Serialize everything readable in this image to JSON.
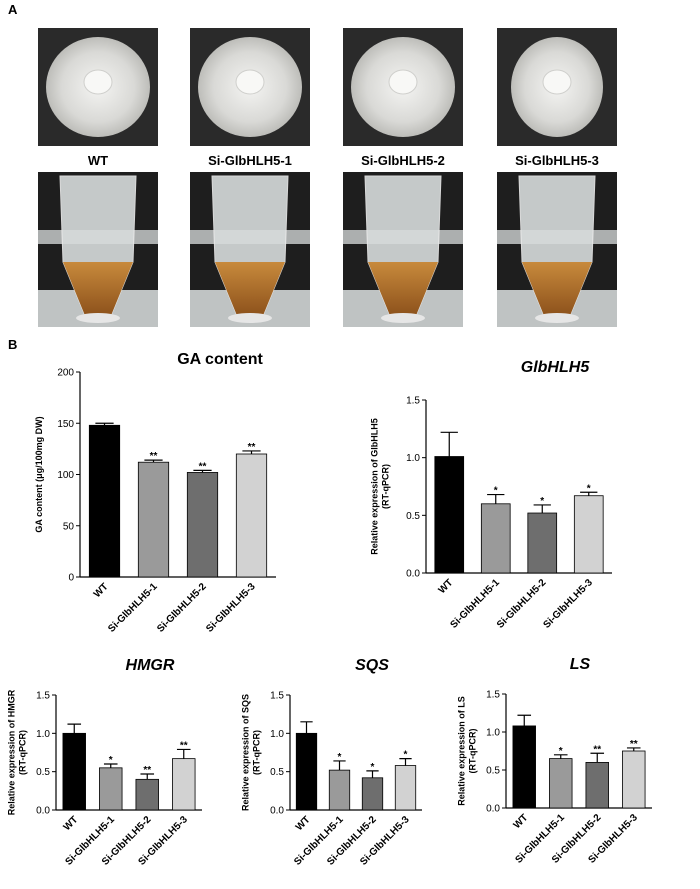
{
  "panel_labels": [
    "A",
    "B"
  ],
  "photo_labels": [
    "WT",
    "Si-GlbHLH5-1",
    "Si-GlbHLH5-2",
    "Si-GlbHLH5-3"
  ],
  "chart_data": [
    {
      "type": "bar",
      "title": "GA content",
      "ylabel": [
        "GA content (μg/100mg DW)"
      ],
      "categories": [
        "WT",
        "Si-GlbHLH5-1",
        "Si-GlbHLH5-2",
        "Si-GlbHLH5-3"
      ],
      "values": [
        148,
        112,
        102,
        120
      ],
      "errors": [
        2,
        2,
        2,
        3
      ],
      "significance": [
        null,
        "**",
        "**",
        "**"
      ],
      "colors": [
        "#000000",
        "#9a9a9a",
        "#6e6e6e",
        "#d2d2d2"
      ],
      "ylim": [
        0,
        200
      ],
      "yticks": [
        0,
        50,
        100,
        150,
        200
      ]
    },
    {
      "type": "bar",
      "title": "GlbHLH5",
      "ylabel": [
        "Relative expression of GlbHLH5",
        "(RT-qPCR)"
      ],
      "categories": [
        "WT",
        "Si-GlbHLH5-1",
        "Si-GlbHLH5-2",
        "Si-GlbHLH5-3"
      ],
      "values": [
        1.01,
        0.6,
        0.52,
        0.67
      ],
      "errors": [
        0.21,
        0.08,
        0.07,
        0.03
      ],
      "significance": [
        null,
        "*",
        "*",
        "*"
      ],
      "colors": [
        "#000000",
        "#9a9a9a",
        "#6e6e6e",
        "#d2d2d2"
      ],
      "ylim": [
        0,
        1.5
      ],
      "yticks": [
        {
          "value": 0,
          "label": "0.0"
        },
        0.5,
        {
          "value": 1,
          "label": "1.0"
        },
        1.5
      ]
    },
    {
      "type": "bar",
      "title": "HMGR",
      "ylabel": [
        "Relative expression of HMGR",
        "(RT-qPCR)"
      ],
      "categories": [
        "WT",
        "Si-GlbHLH5-1",
        "Si-GlbHLH5-2",
        "Si-GlbHLH5-3"
      ],
      "values": [
        1.0,
        0.55,
        0.4,
        0.67
      ],
      "errors": [
        0.12,
        0.05,
        0.07,
        0.12
      ],
      "significance": [
        null,
        "*",
        "**",
        "**"
      ],
      "colors": [
        "#000000",
        "#9a9a9a",
        "#6e6e6e",
        "#d2d2d2"
      ],
      "ylim": [
        0,
        1.5
      ],
      "yticks": [
        {
          "value": 0,
          "label": "0.0"
        },
        0.5,
        {
          "value": 1,
          "label": "1.0"
        },
        1.5
      ]
    },
    {
      "type": "bar",
      "title": "SQS",
      "ylabel": [
        "Relative expression of SQS",
        "(RT-qPCR)"
      ],
      "categories": [
        "WT",
        "Si-GlbHLH5-1",
        "Si-GlbHLH5-2",
        "Si-GlbHLH5-3"
      ],
      "values": [
        1.0,
        0.52,
        0.42,
        0.58
      ],
      "errors": [
        0.15,
        0.12,
        0.09,
        0.09
      ],
      "significance": [
        null,
        "*",
        "*",
        "*"
      ],
      "colors": [
        "#000000",
        "#9a9a9a",
        "#6e6e6e",
        "#d2d2d2"
      ],
      "ylim": [
        0,
        1.5
      ],
      "yticks": [
        {
          "value": 0,
          "label": "0.0"
        },
        0.5,
        {
          "value": 1,
          "label": "1.0"
        },
        1.5
      ]
    },
    {
      "type": "bar",
      "title": "LS",
      "ylabel": [
        "Relative expression of LS",
        "(RT-qPCR)"
      ],
      "categories": [
        "WT",
        "Si-GlbHLH5-1",
        "Si-GlbHLH5-2",
        "Si-GlbHLH5-3"
      ],
      "values": [
        1.08,
        0.65,
        0.6,
        0.75
      ],
      "errors": [
        0.14,
        0.05,
        0.12,
        0.04
      ],
      "significance": [
        null,
        "*",
        "**",
        "**"
      ],
      "colors": [
        "#000000",
        "#9a9a9a",
        "#6e6e6e",
        "#d2d2d2"
      ],
      "ylim": [
        0,
        1.5
      ],
      "yticks": [
        {
          "value": 0,
          "label": "0.0"
        },
        0.5,
        {
          "value": 1,
          "label": "1.0"
        },
        1.5
      ]
    }
  ]
}
